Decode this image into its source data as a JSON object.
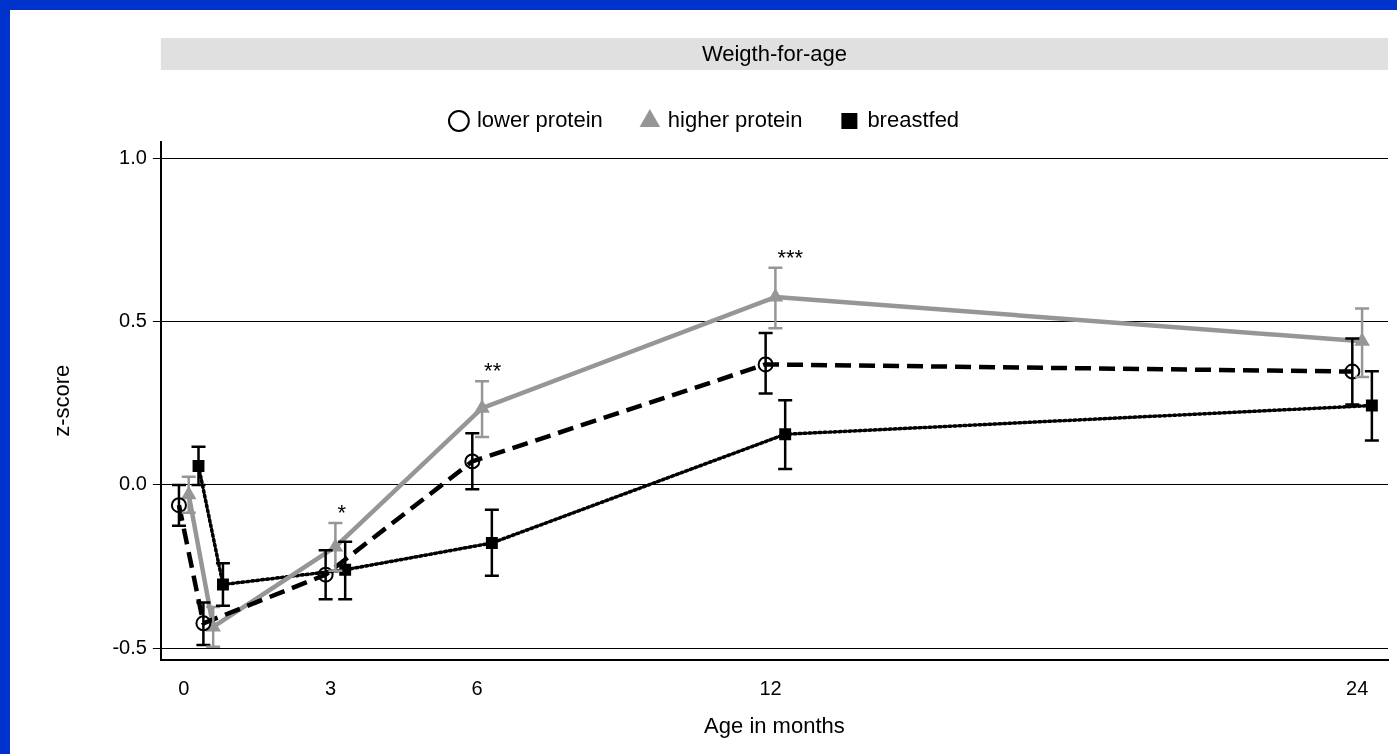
{
  "chart_data": {
    "type": "line",
    "title": "Weigth-for-age",
    "xlabel": "Age in months",
    "ylabel": "z-score",
    "xlim": [
      -0.47,
      24.63
    ],
    "ylim": [
      -0.535,
      1.05
    ],
    "xticks": [
      0,
      3,
      6,
      12,
      24
    ],
    "yticks": [
      {
        "value": -0.5,
        "label": "-0.5"
      },
      {
        "value": 0,
        "label": "0.0"
      },
      {
        "value": 0.5,
        "label": "0.5"
      },
      {
        "value": 1,
        "label": "1.0"
      }
    ],
    "grid": "y",
    "legend": "top",
    "series": [
      {
        "name": "lower protein",
        "color": "#000000",
        "marker": "circle",
        "line_style": "dashed",
        "x": [
          -0.1,
          0.4,
          2.9,
          5.9,
          11.9,
          23.9
        ],
        "values": [
          -0.062,
          -0.424,
          -0.275,
          0.072,
          0.369,
          0.347
        ],
        "errors": [
          [
            -0.125,
            0.0
          ],
          [
            -0.49,
            -0.36
          ],
          [
            -0.35,
            -0.2
          ],
          [
            -0.013,
            0.158
          ],
          [
            0.28,
            0.465
          ],
          [
            0.246,
            0.448
          ]
        ]
      },
      {
        "name": "higher protein",
        "color": "#969696",
        "marker": "triangle",
        "line_style": "solid",
        "x": [
          0.1,
          0.6,
          3.1,
          6.1,
          12.1,
          24.1
        ],
        "values": [
          -0.03,
          -0.435,
          -0.19,
          0.235,
          0.575,
          0.44
        ],
        "errors": [
          [
            -0.085,
            0.025
          ],
          [
            -0.496,
            -0.374
          ],
          [
            -0.263,
            -0.117
          ],
          [
            0.147,
            0.317
          ],
          [
            0.48,
            0.665
          ],
          [
            0.33,
            0.54
          ]
        ]
      },
      {
        "name": "breastfed",
        "color": "#000000",
        "marker": "square",
        "line_style": "dotted",
        "x": [
          0.3,
          0.8,
          3.3,
          6.3,
          12.3,
          24.3
        ],
        "values": [
          0.058,
          -0.305,
          -0.26,
          -0.178,
          0.155,
          0.243
        ],
        "errors": [
          [
            0.0,
            0.117
          ],
          [
            -0.37,
            -0.24
          ],
          [
            -0.35,
            -0.174
          ],
          [
            -0.278,
            -0.076
          ],
          [
            0.049,
            0.259
          ],
          [
            0.136,
            0.348
          ]
        ]
      }
    ],
    "annotations": [
      {
        "text": "*",
        "x": 3.1,
        "y": -0.117
      },
      {
        "text": "**",
        "x": 6.1,
        "y": 0.317
      },
      {
        "text": "***",
        "x": 12.1,
        "y": 0.665
      }
    ]
  }
}
